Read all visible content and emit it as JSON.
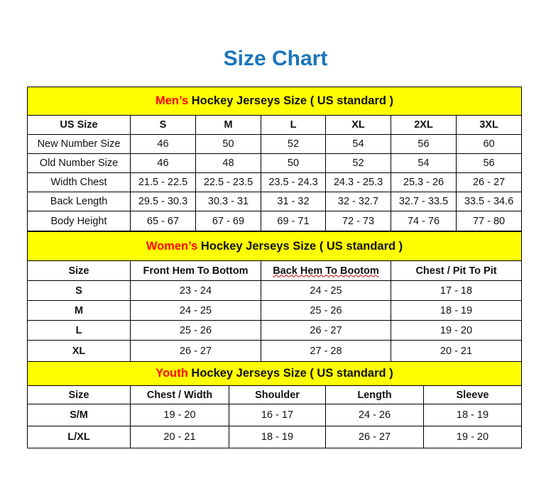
{
  "title": "Size Chart",
  "colors": {
    "title": "#1b75bc",
    "band": "#ffff00",
    "accent": "#ff0000"
  },
  "men": {
    "band_accent": "Men’s",
    "band_rest": " Hockey Jerseys Size ( US standard )",
    "headers": [
      "US Size",
      "S",
      "M",
      "L",
      "XL",
      "2XL",
      "3XL"
    ],
    "rows": [
      [
        "New Number Size",
        "46",
        "50",
        "52",
        "54",
        "56",
        "60"
      ],
      [
        "Old Number Size",
        "46",
        "48",
        "50",
        "52",
        "54",
        "56"
      ],
      [
        "Width Chest",
        "21.5 - 22.5",
        "22.5 - 23.5",
        "23.5 - 24.3",
        "24.3 - 25.3",
        "25.3 - 26",
        "26 - 27"
      ],
      [
        "Back Length",
        "29.5 - 30.3",
        "30.3 - 31",
        "31 - 32",
        "32 - 32.7",
        "32.7 - 33.5",
        "33.5 - 34.6"
      ],
      [
        "Body Height",
        "65 - 67",
        "67 - 69",
        "69 - 71",
        "72 - 73",
        "74 - 76",
        "77 - 80"
      ]
    ]
  },
  "women": {
    "band_accent": "Women’s",
    "band_rest": " Hockey Jerseys Size ( US standard )",
    "headers": [
      "Size",
      "Front Hem To Bottom",
      "Back Hem To Bootom",
      "Chest / Pit To Pit"
    ],
    "rows": [
      [
        "S",
        "23 - 24",
        "24 - 25",
        "17 - 18"
      ],
      [
        "M",
        "24 - 25",
        "25 - 26",
        "18 - 19"
      ],
      [
        "L",
        "25 - 26",
        "26 - 27",
        "19 - 20"
      ],
      [
        "XL",
        "26 - 27",
        "27 - 28",
        "20 - 21"
      ]
    ]
  },
  "youth": {
    "band_accent": "Youth",
    "band_rest": " Hockey Jerseys Size ( US standard )",
    "headers": [
      "Size",
      "Chest / Width",
      "Shoulder",
      "Length",
      "Sleeve"
    ],
    "rows": [
      [
        "S/M",
        "19 - 20",
        "16 - 17",
        "24 - 26",
        "18 - 19"
      ],
      [
        "L/XL",
        "20 - 21",
        "18 - 19",
        "26 - 27",
        "19 - 20"
      ]
    ]
  }
}
